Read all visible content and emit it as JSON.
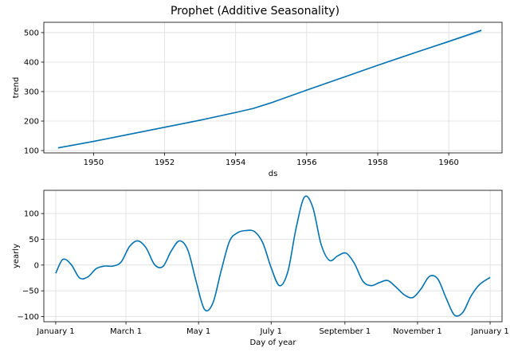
{
  "title": "Prophet (Additive Seasonality)",
  "colors": {
    "line": "#0072B2",
    "band": "#9bc7e3",
    "grid": "#dddddd",
    "axis": "#000000"
  },
  "chart_data": [
    {
      "type": "line",
      "xlabel": "ds",
      "ylabel": "trend",
      "xlim": [
        1948.6,
        1961.5
      ],
      "ylim": [
        92,
        535
      ],
      "grid": true,
      "xticks": [
        1950,
        1952,
        1954,
        1956,
        1958,
        1960
      ],
      "xtick_labels": [
        "1950",
        "1952",
        "1954",
        "1956",
        "1958",
        "1960"
      ],
      "yticks": [
        100,
        200,
        300,
        400,
        500
      ],
      "ytick_labels": [
        "100",
        "200",
        "300",
        "400",
        "500"
      ],
      "x": [
        1949.0,
        1950.0,
        1951.0,
        1952.0,
        1953.0,
        1954.0,
        1954.5,
        1955.0,
        1956.0,
        1957.0,
        1958.0,
        1959.0,
        1960.0,
        1960.92
      ],
      "y": [
        109,
        131,
        155,
        179,
        203,
        229,
        243,
        262,
        305,
        347,
        389,
        430,
        470,
        508
      ],
      "upper": [
        109,
        131,
        155,
        179,
        203,
        229,
        243,
        262,
        305,
        347,
        389,
        430,
        470,
        510
      ],
      "lower": [
        109,
        131,
        155,
        179,
        203,
        229,
        243,
        262,
        305,
        347,
        389,
        429,
        467,
        502
      ]
    },
    {
      "type": "line",
      "xlabel": "Day of year",
      "ylabel": "yearly",
      "xlim": [
        -10,
        375
      ],
      "ylim": [
        -110,
        145
      ],
      "grid": true,
      "xticks": [
        0,
        59,
        120,
        181,
        243,
        304,
        365
      ],
      "xtick_labels": [
        "January 1",
        "March 1",
        "May 1",
        "July 1",
        "September 1",
        "November 1",
        "January 1"
      ],
      "yticks": [
        -100,
        -50,
        0,
        50,
        100
      ],
      "ytick_labels": [
        "−100",
        "−50",
        "0",
        "50",
        "100"
      ],
      "x": [
        0,
        6,
        13,
        20,
        27,
        34,
        41,
        48,
        55,
        62,
        69,
        76,
        83,
        90,
        97,
        104,
        111,
        118,
        125,
        132,
        139,
        146,
        153,
        160,
        167,
        174,
        181,
        188,
        195,
        202,
        209,
        216,
        223,
        230,
        237,
        244,
        251,
        258,
        265,
        272,
        279,
        286,
        293,
        300,
        307,
        314,
        321,
        328,
        335,
        342,
        349,
        356,
        365
      ],
      "y": [
        -16,
        11,
        1,
        -25,
        -23,
        -7,
        -2,
        -2,
        6,
        36,
        47,
        33,
        1,
        -3,
        27,
        47,
        29,
        -32,
        -86,
        -74,
        -11,
        46,
        63,
        67,
        65,
        43,
        -5,
        -40,
        -13,
        72,
        132,
        112,
        40,
        9,
        18,
        23,
        3,
        -31,
        -40,
        -34,
        -30,
        -43,
        -58,
        -63,
        -46,
        -22,
        -27,
        -64,
        -97,
        -92,
        -60,
        -38,
        -24
      ]
    }
  ]
}
